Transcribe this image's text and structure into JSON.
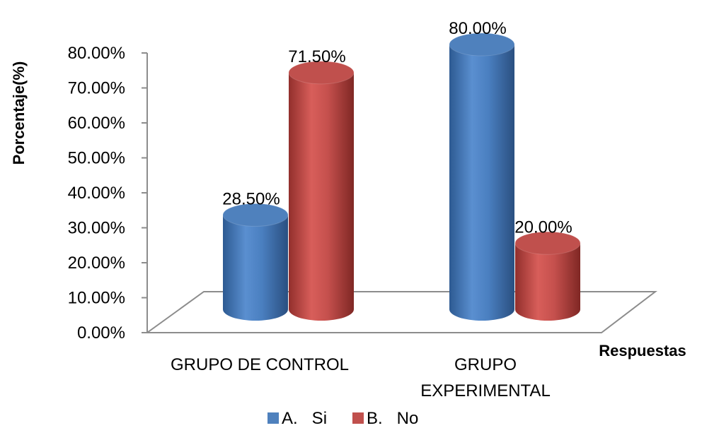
{
  "chart_data": {
    "type": "bar",
    "style": "3d-cylinder",
    "title": "",
    "ylabel": "Porcentaje(%)",
    "xlabel": "Respuestas",
    "ylim": [
      0,
      80
    ],
    "yticks": [
      "0.00%",
      "10.00%",
      "20.00%",
      "30.00%",
      "40.00%",
      "50.00%",
      "60.00%",
      "70.00%",
      "80.00%"
    ],
    "categories": [
      {
        "lines": [
          "GRUPO DE CONTROL"
        ]
      },
      {
        "lines": [
          "GRUPO",
          "EXPERIMENTAL"
        ]
      }
    ],
    "series": [
      {
        "name": "A.   Si",
        "color": "#4F81BD",
        "values": [
          28.5,
          80.0
        ],
        "labels": [
          "28.50%",
          "80.00%"
        ]
      },
      {
        "name": "B.   No",
        "color": "#C0504D",
        "values": [
          71.5,
          20.0
        ],
        "labels": [
          "71.50%",
          "20.00%"
        ]
      }
    ],
    "legend_position": "bottom",
    "grid": false
  }
}
